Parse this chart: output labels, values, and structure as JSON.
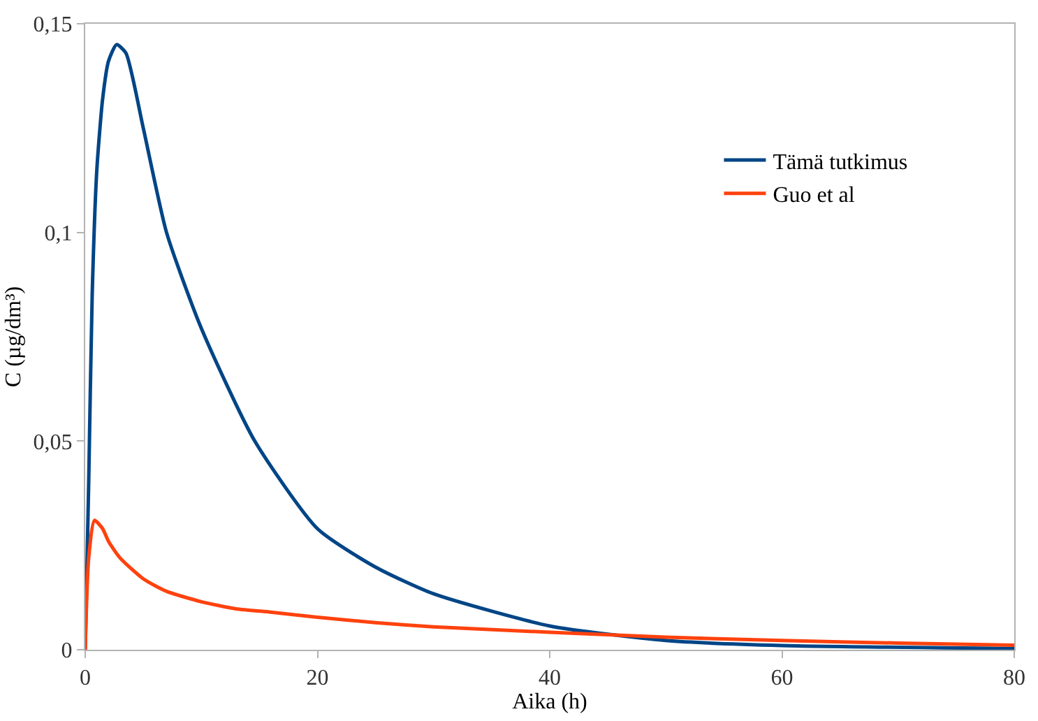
{
  "chart_data": {
    "type": "line",
    "xlabel": "Aika (h)",
    "ylabel": "C (µg/dm³)",
    "xlim": [
      0,
      80
    ],
    "xticks": [
      0,
      20,
      40,
      60,
      80
    ],
    "ylim": [
      0,
      0.15
    ],
    "yticks": [
      {
        "value": 0,
        "label": "0"
      },
      {
        "value": 0.05,
        "label": "0,05"
      },
      {
        "value": 0.1,
        "label": "0,1"
      },
      {
        "value": 0.15,
        "label": "0,15"
      }
    ],
    "legend": "right",
    "marker": "none",
    "line_style": "solid",
    "series": [
      {
        "name": "Tämä tutkimus",
        "color": "#004586",
        "x": [
          0,
          0.3,
          0.6,
          1,
          1.5,
          2,
          2.7,
          3.5,
          5,
          7,
          10,
          14.6,
          20,
          25,
          30,
          40,
          50,
          60,
          80
        ],
        "values": [
          0,
          0.04,
          0.085,
          0.115,
          0.132,
          0.141,
          0.145,
          0.143,
          0.125,
          0.1,
          0.077,
          0.05,
          0.029,
          0.0198,
          0.0134,
          0.0057,
          0.0022,
          0.001,
          0.0003
        ]
      },
      {
        "name": "Guo et al",
        "color": "#ff420e",
        "x": [
          0,
          0.3,
          0.8,
          1.5,
          2,
          3,
          5,
          7,
          10,
          13,
          16,
          20,
          25,
          30,
          40,
          50,
          60,
          70,
          80
        ],
        "values": [
          0,
          0.022,
          0.031,
          0.029,
          0.026,
          0.022,
          0.017,
          0.014,
          0.0115,
          0.0098,
          0.009,
          0.0078,
          0.0065,
          0.0055,
          0.0042,
          0.003,
          0.0022,
          0.0016,
          0.0011
        ]
      }
    ]
  }
}
